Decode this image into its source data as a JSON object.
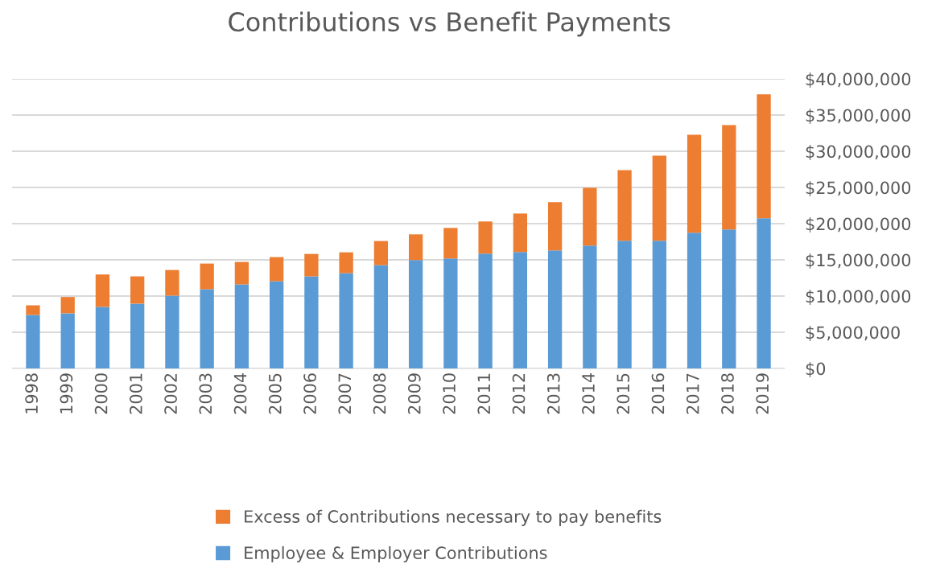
{
  "chart_data": {
    "type": "bar",
    "title": "Contributions vs Benefit Payments",
    "categories": [
      "1998",
      "1999",
      "2000",
      "2001",
      "2002",
      "2003",
      "2004",
      "2005",
      "2006",
      "2007",
      "2008",
      "2009",
      "2010",
      "2011",
      "2012",
      "2013",
      "2014",
      "2015",
      "2016",
      "2017",
      "2018",
      "2019"
    ],
    "stacked": true,
    "series": [
      {
        "name": "Employee & Employer Contributions",
        "color": "#5b9bd5",
        "values": [
          7390000,
          7620000,
          8500000,
          8950000,
          10060000,
          10940000,
          11610000,
          12050000,
          12720000,
          13160000,
          14270000,
          14970000,
          15190000,
          15860000,
          16080000,
          16300000,
          16970000,
          17630000,
          17630000,
          18740000,
          19190000,
          20740000
        ]
      },
      {
        "name": "Excess of Contributions necessary to pay benefits",
        "color": "#ed7d31",
        "values": [
          1330000,
          2250000,
          4480000,
          3770000,
          3540000,
          3550000,
          3100000,
          3330000,
          3100000,
          2880000,
          3330000,
          3550000,
          4220000,
          4440000,
          5320000,
          6660000,
          7980000,
          9760000,
          11760000,
          13530000,
          14410000,
          17120000
        ]
      }
    ],
    "ylim": [
      0,
      40000000
    ],
    "yticks": [
      {
        "value": 0,
        "label": "$0"
      },
      {
        "value": 5000000,
        "label": "$5,000,000"
      },
      {
        "value": 10000000,
        "label": "$10,000,000"
      },
      {
        "value": 15000000,
        "label": "$15,000,000"
      },
      {
        "value": 20000000,
        "label": "$20,000,000"
      },
      {
        "value": 25000000,
        "label": "$25,000,000"
      },
      {
        "value": 30000000,
        "label": "$30,000,000"
      },
      {
        "value": 35000000,
        "label": "$35,000,000"
      },
      {
        "value": 40000000,
        "label": "$40,000,000"
      }
    ],
    "grid": "y",
    "legend": "bottom"
  }
}
